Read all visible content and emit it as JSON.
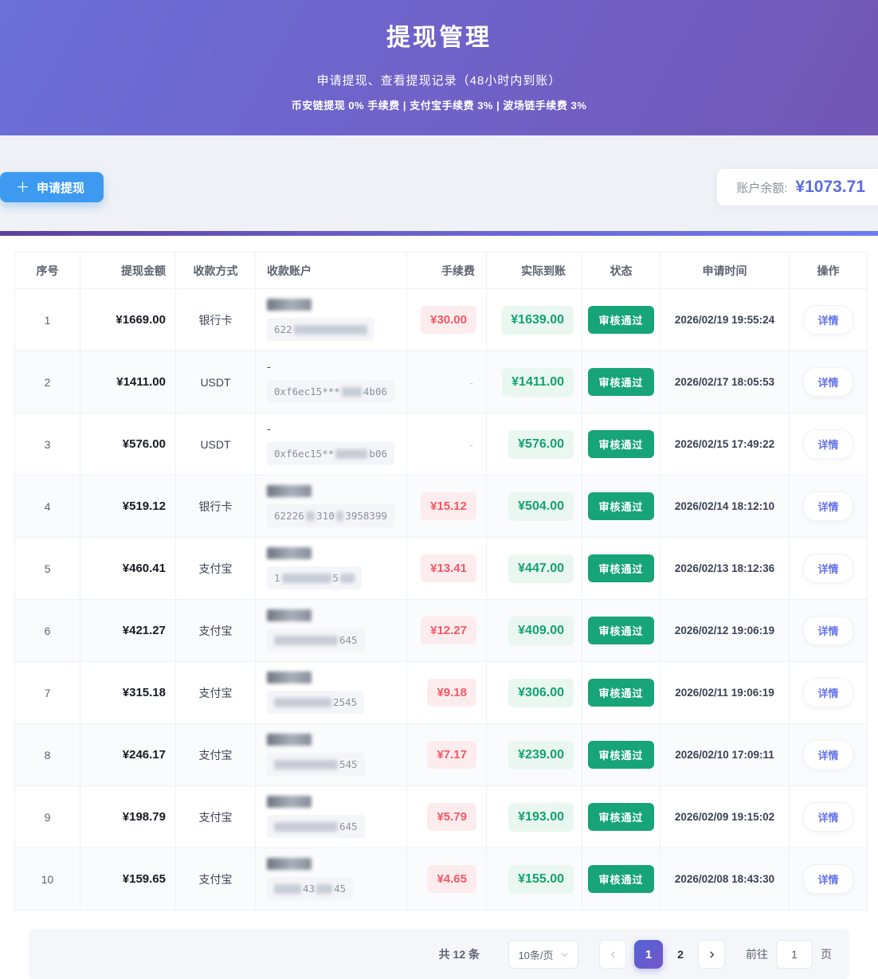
{
  "hero": {
    "title": "提现管理",
    "subtitle": "申请提现、查看提现记录（48小时内到账）",
    "note": "币安链提现 0% 手续费 | 支付宝手续费 3% | 波场链手续费 3%"
  },
  "toolbar": {
    "apply_button": "申请提现",
    "balance_label": "账户余额:",
    "balance_value": "¥1073.71"
  },
  "table": {
    "headers": [
      "序号",
      "提现金额",
      "收款方式",
      "收款账户",
      "手续费",
      "实际到账",
      "状态",
      "申请时间",
      "操作"
    ],
    "rows": [
      {
        "index": "1",
        "amount": "¥1669.00",
        "method": "银行卡",
        "account": {
          "line1": null,
          "segments": [
            {
              "text": "622"
            },
            {
              "blur": 92
            }
          ]
        },
        "fee": "¥30.00",
        "actual": "¥1639.00",
        "status": "审核通过",
        "time": "2026/02/19 19:55:24",
        "action": "详情"
      },
      {
        "index": "2",
        "amount": "¥1411.00",
        "method": "USDT",
        "account": {
          "line1": "-",
          "segments": [
            {
              "text": "0xf6ec15***"
            },
            {
              "blur": 42
            },
            {
              "text": "4b06"
            }
          ]
        },
        "fee": null,
        "actual": "¥1411.00",
        "status": "审核通过",
        "time": "2026/02/17 18:05:53",
        "action": "详情"
      },
      {
        "index": "3",
        "amount": "¥576.00",
        "method": "USDT",
        "account": {
          "line1": "-",
          "segments": [
            {
              "text": "0xf6ec15**"
            },
            {
              "blur": 46
            },
            {
              "text": "b06"
            }
          ]
        },
        "fee": null,
        "actual": "¥576.00",
        "status": "审核通过",
        "time": "2026/02/15 17:49:22",
        "action": "详情"
      },
      {
        "index": "4",
        "amount": "¥519.12",
        "method": "银行卡",
        "account": {
          "line1": null,
          "segments": [
            {
              "text": "62226"
            },
            {
              "blur": 12
            },
            {
              "text": "310"
            },
            {
              "blur": 10
            },
            {
              "text": "3958399"
            }
          ]
        },
        "fee": "¥15.12",
        "actual": "¥504.00",
        "status": "审核通过",
        "time": "2026/02/14 18:12:10",
        "action": "详情"
      },
      {
        "index": "5",
        "amount": "¥460.41",
        "method": "支付宝",
        "account": {
          "line1": null,
          "segments": [
            {
              "text": "1"
            },
            {
              "blur": 62
            },
            {
              "text": "5"
            },
            {
              "blur": 18
            }
          ]
        },
        "fee": "¥13.41",
        "actual": "¥447.00",
        "status": "审核通过",
        "time": "2026/02/13 18:12:36",
        "action": "详情"
      },
      {
        "index": "6",
        "amount": "¥421.27",
        "method": "支付宝",
        "account": {
          "line1": null,
          "segments": [
            {
              "blur": 80
            },
            {
              "text": "645"
            }
          ]
        },
        "fee": "¥12.27",
        "actual": "¥409.00",
        "status": "审核通过",
        "time": "2026/02/12 19:06:19",
        "action": "详情"
      },
      {
        "index": "7",
        "amount": "¥315.18",
        "method": "支付宝",
        "account": {
          "line1": null,
          "segments": [
            {
              "blur": 72
            },
            {
              "text": "2545"
            }
          ]
        },
        "fee": "¥9.18",
        "actual": "¥306.00",
        "status": "审核通过",
        "time": "2026/02/11 19:06:19",
        "action": "详情"
      },
      {
        "index": "8",
        "amount": "¥246.17",
        "method": "支付宝",
        "account": {
          "line1": null,
          "segments": [
            {
              "blur": 80
            },
            {
              "text": "545"
            }
          ]
        },
        "fee": "¥7.17",
        "actual": "¥239.00",
        "status": "审核通过",
        "time": "2026/02/10 17:09:11",
        "action": "详情"
      },
      {
        "index": "9",
        "amount": "¥198.79",
        "method": "支付宝",
        "account": {
          "line1": null,
          "segments": [
            {
              "blur": 80
            },
            {
              "text": "645"
            }
          ]
        },
        "fee": "¥5.79",
        "actual": "¥193.00",
        "status": "审核通过",
        "time": "2026/02/09 19:15:02",
        "action": "详情"
      },
      {
        "index": "10",
        "amount": "¥159.65",
        "method": "支付宝",
        "account": {
          "line1": null,
          "segments": [
            {
              "blur": 34
            },
            {
              "text": "43"
            },
            {
              "blur": 20
            },
            {
              "text": "45"
            }
          ]
        },
        "fee": "¥4.65",
        "actual": "¥155.00",
        "status": "审核通过",
        "time": "2026/02/08 18:43:30",
        "action": "详情"
      }
    ]
  },
  "pagination": {
    "total": "共 12 条",
    "page_size": "10条/页",
    "pages": [
      "1",
      "2"
    ],
    "current": "1",
    "goto_label": "前往",
    "goto_value": "1",
    "goto_suffix": "页"
  },
  "colors": {
    "accent_blue": "#3d9af0",
    "balance_purple": "#5b6ce0",
    "status_green": "#17a476",
    "fee_red": "#f25864",
    "actual_green": "#13a26e",
    "link_purple": "#6673e8",
    "hero_gradient_start": "#6a70d8",
    "hero_gradient_end": "#7157b6"
  }
}
